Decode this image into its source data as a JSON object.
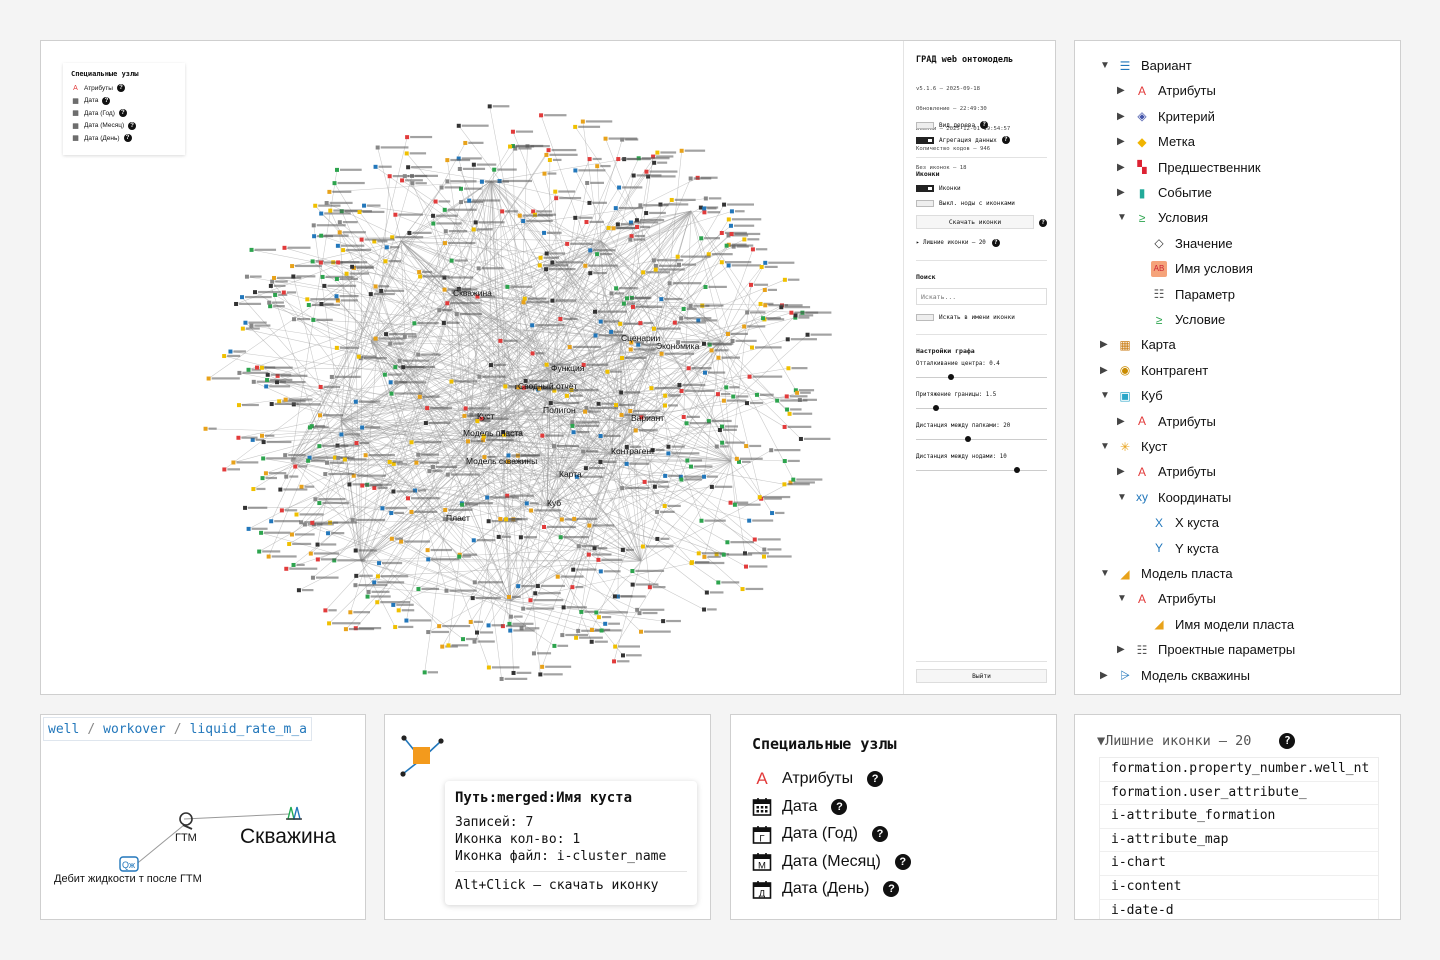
{
  "graph": {
    "legend": {
      "title": "Специальные узлы",
      "items": [
        {
          "label": "Атрибуты",
          "icon": "attribute-icon"
        },
        {
          "label": "Дата",
          "icon": "calendar-icon"
        },
        {
          "label": "Дата (Год)",
          "icon": "calendar-year-icon"
        },
        {
          "label": "Дата (Месяц)",
          "icon": "calendar-month-icon"
        },
        {
          "label": "Дата (День)",
          "icon": "calendar-day-icon"
        }
      ]
    },
    "hub_labels": [
      "Скважина",
      "Функция",
      "Сценарии",
      "Экономика",
      "Сводный отчёт",
      "Куст",
      "Полигон",
      "Вариант",
      "Модель пласта",
      "Модель скважины",
      "Контрагент",
      "Карта",
      "Куб",
      "Пласт"
    ]
  },
  "controls": {
    "title": "ГРАД web онтомодель",
    "meta": [
      "v5.1.6 — 2025-09-18",
      "Обновление — 22:49:30",
      "Иконки — 2025-12-01 19:54:57",
      "Количество кодов — 946",
      "Без иконок — 18"
    ],
    "tree_view_label": "Вид дерева",
    "aggregation_label": "Агрегация данных",
    "icons_section": "Иконки",
    "icons_toggle": "Иконки",
    "hide_nodes_label": "Выкл. ноды с иконками",
    "download_icons": "Скачать иконки",
    "extra_icons": "▸ Лишние иконки — 20",
    "search_section": "Поиск",
    "search_placeholder": "Искать...",
    "search_in_icon_name": "Искать в имени иконки",
    "graph_settings": "Настройки графа",
    "sliders": [
      {
        "label": "Отталкивание центра: 0.4",
        "value": 0.4,
        "min": 0,
        "max": 1.5
      },
      {
        "label": "Притяжение границы: 1.5",
        "value": 1.5,
        "min": 0,
        "max": 10
      },
      {
        "label": "Дистанция между папками: 20",
        "value": 20,
        "min": 0,
        "max": 50
      },
      {
        "label": "Дистанция между нодами: 10",
        "value": 10,
        "min": 0,
        "max": 13
      }
    ],
    "logout": "Выйти"
  },
  "tree": {
    "items": [
      {
        "level": 0,
        "expanded": true,
        "label": "Вариант",
        "icon": "variant-icon"
      },
      {
        "level": 1,
        "expanded": false,
        "label": "Атрибуты",
        "icon": "attribute-icon"
      },
      {
        "level": 1,
        "expanded": false,
        "label": "Критерий",
        "icon": "criterion-icon"
      },
      {
        "level": 1,
        "expanded": false,
        "label": "Метка",
        "icon": "tag-icon"
      },
      {
        "level": 1,
        "expanded": false,
        "label": "Предшественник",
        "icon": "predecessor-icon"
      },
      {
        "level": 1,
        "expanded": false,
        "label": "Событие",
        "icon": "event-icon"
      },
      {
        "level": 1,
        "expanded": true,
        "label": "Условия",
        "icon": "conditions-icon"
      },
      {
        "level": 2,
        "expanded": null,
        "label": "Значение",
        "icon": "value-icon"
      },
      {
        "level": 2,
        "expanded": null,
        "label": "Имя условия",
        "icon": "condition-name-icon"
      },
      {
        "level": 2,
        "expanded": null,
        "label": "Параметр",
        "icon": "parameter-icon"
      },
      {
        "level": 2,
        "expanded": null,
        "label": "Условие",
        "icon": "condition-icon"
      },
      {
        "level": 0,
        "expanded": false,
        "label": "Карта",
        "icon": "map-icon"
      },
      {
        "level": 0,
        "expanded": false,
        "label": "Контрагент",
        "icon": "contractor-icon"
      },
      {
        "level": 0,
        "expanded": true,
        "label": "Куб",
        "icon": "cube-icon"
      },
      {
        "level": 1,
        "expanded": false,
        "label": "Атрибуты",
        "icon": "attribute-icon"
      },
      {
        "level": 0,
        "expanded": true,
        "label": "Куст",
        "icon": "cluster-icon"
      },
      {
        "level": 1,
        "expanded": false,
        "label": "Атрибуты",
        "icon": "attribute-icon"
      },
      {
        "level": 1,
        "expanded": true,
        "label": "Координаты",
        "icon": "coordinates-icon"
      },
      {
        "level": 2,
        "expanded": null,
        "label": "X куста",
        "icon": "x-axis-icon"
      },
      {
        "level": 2,
        "expanded": null,
        "label": "Y куста",
        "icon": "y-axis-icon"
      },
      {
        "level": 0,
        "expanded": true,
        "label": "Модель пласта",
        "icon": "reservoir-model-icon"
      },
      {
        "level": 1,
        "expanded": true,
        "label": "Атрибуты",
        "icon": "attribute-icon"
      },
      {
        "level": 2,
        "expanded": null,
        "label": "Имя модели пласта",
        "icon": "reservoir-name-icon"
      },
      {
        "level": 1,
        "expanded": false,
        "label": "Проектные параметры",
        "icon": "parameter-icon"
      },
      {
        "level": 0,
        "expanded": false,
        "label": "Модель скважины",
        "icon": "well-model-icon"
      }
    ]
  },
  "breadcrumb": {
    "parts": [
      "well",
      "workover",
      "liquid_rate_m_a"
    ],
    "nodes": {
      "gtm": "ГТМ",
      "well": "Скважина",
      "rate": "Дебит жидкости т после ГТМ",
      "rate_icon_text": "Qж"
    }
  },
  "tooltip": {
    "title": "Путь:merged:Имя куста",
    "records": "Записей: 7",
    "icon_count": "Иконка кол-во: 1",
    "icon_file": "Иконка файл: i-cluster_name",
    "hint": "Alt+Click — скачать иконку"
  },
  "special_legend": {
    "title": "Специальные узлы",
    "items": [
      {
        "label": "Атрибуты",
        "icon": "attribute-icon",
        "cal": ""
      },
      {
        "label": "Дата",
        "icon": "calendar-icon",
        "cal": ""
      },
      {
        "label": "Дата (Год)",
        "icon": "calendar-year-icon",
        "cal": "Г"
      },
      {
        "label": "Дата (Месяц)",
        "icon": "calendar-month-icon",
        "cal": "М"
      },
      {
        "label": "Дата (День)",
        "icon": "calendar-day-icon",
        "cal": "Д"
      }
    ]
  },
  "extra_icons": {
    "header": "▼Лишние иконки — 20",
    "items": [
      "formation.property_number.well_nt",
      "formation.user_attribute_",
      "i-attribute_formation",
      "i-attribute_map",
      "i-chart",
      "i-content",
      "i-date-d"
    ]
  },
  "colors": {
    "accent_red": "#e23b3b",
    "link_blue": "#2277bb",
    "orange": "#f39a1c",
    "green": "#2da44e"
  }
}
